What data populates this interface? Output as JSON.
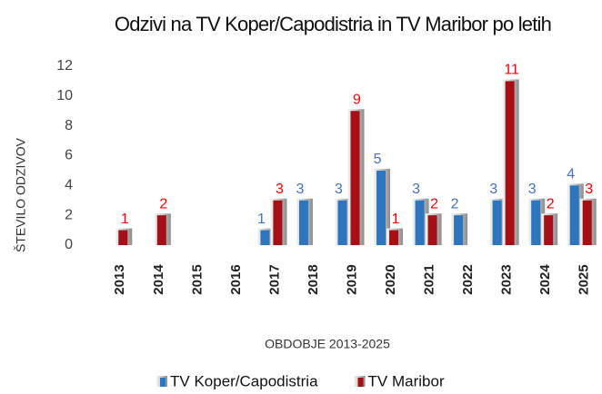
{
  "chart_data": {
    "type": "bar",
    "title": "Odzivi na TV Koper/Capodistria in TV Maribor po letih",
    "x_label": "OBDOBJE 2013-2025",
    "y_label": "ŠTEVILO ODZIVOV",
    "categories": [
      "2013",
      "2014",
      "2015",
      "2016",
      "2017",
      "2018",
      "2019",
      "2020",
      "2021",
      "2022",
      "2023",
      "2024",
      "2025"
    ],
    "series": [
      {
        "name": "TV Koper/Capodistria",
        "color": "#2e75c0",
        "label_color": "#4472c4",
        "values": [
          null,
          null,
          null,
          null,
          1,
          3,
          3,
          5,
          3,
          2,
          3,
          3,
          4
        ]
      },
      {
        "name": "TV Maribor",
        "color": "#a50f15",
        "label_color": "#ff0000",
        "values": [
          1,
          2,
          null,
          null,
          3,
          null,
          9,
          1,
          2,
          null,
          11,
          2,
          3
        ]
      }
    ],
    "ylim": [
      0,
      12
    ],
    "yticks": [
      0,
      2,
      4,
      6,
      8,
      10,
      12
    ],
    "grid": false,
    "legend": "bottom"
  }
}
